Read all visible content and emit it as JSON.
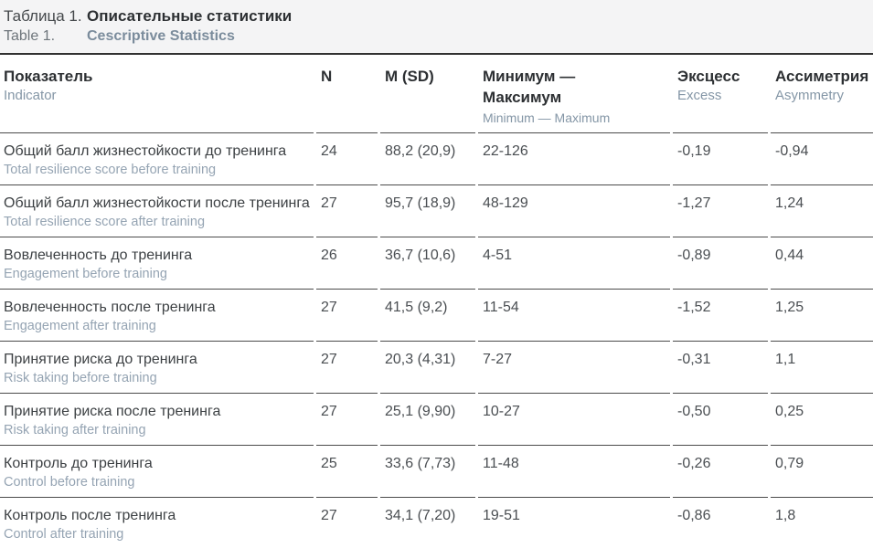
{
  "caption": {
    "ru_label": "Таблица 1.",
    "ru_title": "Описательные статистики",
    "en_label": "Table 1.",
    "en_title": "Cescriptive Statistics"
  },
  "colors": {
    "caption_background": "#f4f4f5",
    "header_top_border": "#313131",
    "row_border": "#4b4b4b",
    "primary_text": "#3d4144",
    "secondary_text_blue_gray": "#8da0af"
  },
  "table": {
    "columns": [
      {
        "ru": "Показатель",
        "en": "Indicator"
      },
      {
        "ru": "N",
        "en": ""
      },
      {
        "ru": "M (SD)",
        "en": ""
      },
      {
        "ru": "Минимум — Максимум",
        "en": "Minimum — Maximum"
      },
      {
        "ru": "Эксцесс",
        "en": "Excess"
      },
      {
        "ru": "Ассиметрия",
        "en": "Asymmetry"
      }
    ],
    "rows": [
      {
        "ru": "Общий балл жизнестойкости до тренинга",
        "en": "Total resilience score before training",
        "n": "24",
        "m_sd": "88,2 (20,9)",
        "min_max": "22-126",
        "excess": "-0,19",
        "asymmetry": "-0,94"
      },
      {
        "ru": "Общий балл жизнестойкости после тренинга",
        "en": "Total resilience score after training",
        "n": "27",
        "m_sd": "95,7 (18,9)",
        "min_max": "48-129",
        "excess": "-1,27",
        "asymmetry": "1,24"
      },
      {
        "ru": "Вовлеченность до тренинга",
        "en": "Engagement before training",
        "n": "26",
        "m_sd": "36,7 (10,6)",
        "min_max": "4-51",
        "excess": "-0,89",
        "asymmetry": "0,44"
      },
      {
        "ru": "Вовлеченность после тренинга",
        "en": "Engagement after training",
        "n": "27",
        "m_sd": "41,5 (9,2)",
        "min_max": "11-54",
        "excess": "-1,52",
        "asymmetry": "1,25"
      },
      {
        "ru": "Принятие риска до тренинга",
        "en": "Risk taking before training",
        "n": "27",
        "m_sd": "20,3 (4,31)",
        "min_max": "7-27",
        "excess": "-0,31",
        "asymmetry": "1,1"
      },
      {
        "ru": "Принятие риска после тренинга",
        "en": "Risk taking after training",
        "n": "27",
        "m_sd": "25,1 (9,90)",
        "min_max": "10-27",
        "excess": "-0,50",
        "asymmetry": "0,25"
      },
      {
        "ru": "Контроль до тренинга",
        "en": "Control before training",
        "n": "25",
        "m_sd": "33,6 (7,73)",
        "min_max": "11-48",
        "excess": "-0,26",
        "asymmetry": "0,79"
      },
      {
        "ru": "Контроль после тренинга",
        "en": "Control after training",
        "n": "27",
        "m_sd": "34,1 (7,20)",
        "min_max": "19-51",
        "excess": "-0,86",
        "asymmetry": "1,8"
      }
    ]
  }
}
